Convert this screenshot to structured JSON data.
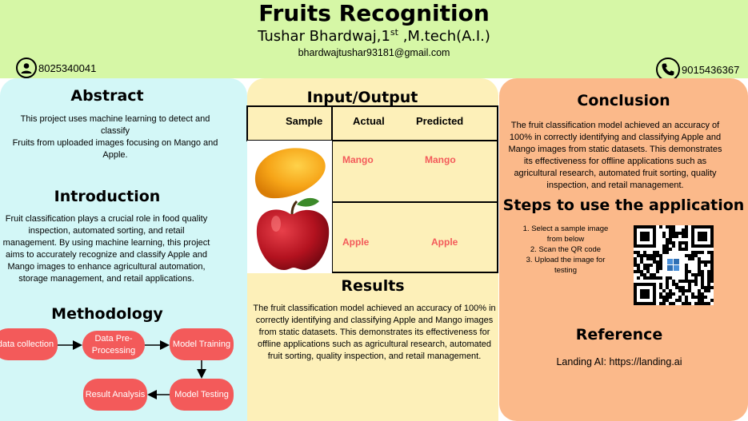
{
  "header": {
    "title": "Fruits Recognition",
    "author_name": "Tushar Bhardwaj,1",
    "author_sup": "st",
    "author_degree": " ,M.tech(A.I.)",
    "email": "bhardwajtushar93181@gmail.com",
    "phone_left": "8025340041",
    "phone_right": "9015436367"
  },
  "abstract": {
    "heading": "Abstract",
    "line1": "This project uses machine learning to detect and classify",
    "line2": "Fruits from uploaded images focusing   on Mango and Apple."
  },
  "introduction": {
    "heading": "Introduction",
    "text": "Fruit classification plays a crucial role in food quality inspection, automated sorting, and retail management. By using machine learning, this project aims to accurately recognize and classify Apple and Mango images to enhance agricultural automation, storage management, and retail applications."
  },
  "methodology": {
    "heading": "Methodology",
    "steps": [
      "data collection",
      "Data Pre-Processing",
      "Model Training",
      "Model Testing",
      "Result Analysis"
    ]
  },
  "io": {
    "heading": "Input/Output",
    "col_sample": "Sample",
    "col_actual": "Actual",
    "col_predicted": "Predicted",
    "rows": [
      {
        "actual": "Mango",
        "predicted": "Mango"
      },
      {
        "actual": "Apple",
        "predicted": "Apple"
      }
    ]
  },
  "results": {
    "heading": "Results",
    "text": "The fruit classification model achieved an accuracy of 100% in correctly identifying and classifying Apple and Mango images from static datasets. This demonstrates its effectiveness for offline applications such as agricultural research, automated fruit sorting, quality inspection, and retail management."
  },
  "conclusion": {
    "heading": "Conclusion",
    "text": "The fruit classification model achieved an accuracy of 100% in correctly identifying and classifying Apple and Mango images from static datasets. This demonstrates its effectiveness for offline applications such as agricultural research, automated fruit sorting, quality inspection, and retail management."
  },
  "steps_to_use": {
    "heading": "Steps to use the application",
    "items": [
      "1.  Select a sample image from below",
      "2.   Scan the QR code",
      "3.    Upload the image for testing"
    ]
  },
  "reference": {
    "heading": "Reference",
    "text": "Landing AI: https://landing.ai"
  },
  "icons": [
    "user-icon",
    "phone-icon",
    "qr-code-icon",
    "arrow-right-icon",
    "arrow-down-icon",
    "arrow-left-icon"
  ],
  "colors": {
    "header_bg": "#d6f7a6",
    "left_panel": "#d3f7f7",
    "middle_panel": "#fdf0b9",
    "right_panel": "#fbb98a",
    "flow_box": "#f35a5a",
    "fruit_label": "#f35a5a"
  }
}
